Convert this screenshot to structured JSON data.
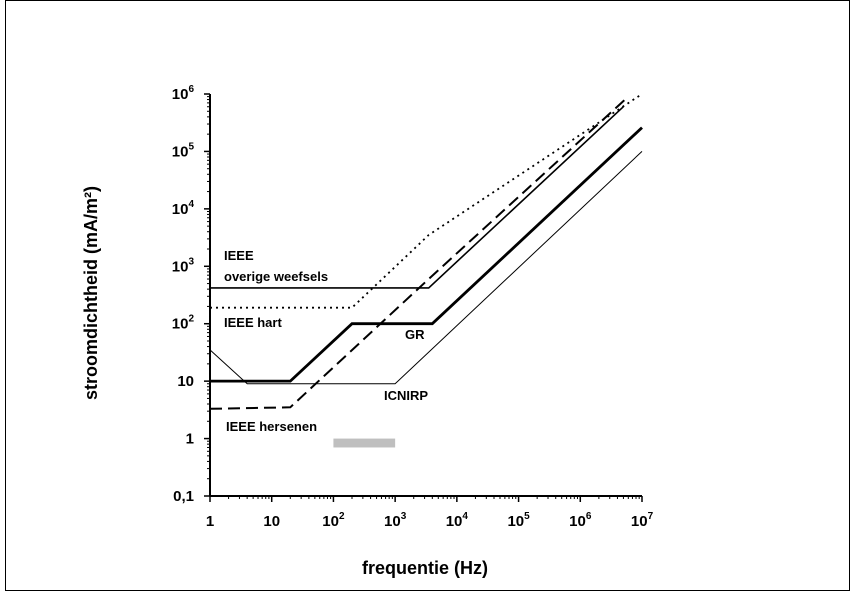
{
  "chart_data": {
    "type": "line",
    "xlabel": "frequentie (Hz)",
    "ylabel": "stroomdichtheid (mA/m²)",
    "xscale": "log",
    "yscale": "log",
    "xlim": [
      1,
      10000000
    ],
    "ylim": [
      0.1,
      1000000
    ],
    "grid": false,
    "x_ticks": [
      {
        "base": "1",
        "exp": ""
      },
      {
        "base": "10",
        "exp": ""
      },
      {
        "base": "10",
        "exp": "2"
      },
      {
        "base": "10",
        "exp": "3"
      },
      {
        "base": "10",
        "exp": "4"
      },
      {
        "base": "10",
        "exp": "5"
      },
      {
        "base": "10",
        "exp": "6"
      },
      {
        "base": "10",
        "exp": "7"
      }
    ],
    "y_ticks": [
      {
        "base": "0,1",
        "exp": ""
      },
      {
        "base": "1",
        "exp": ""
      },
      {
        "base": "10",
        "exp": ""
      },
      {
        "base": "10",
        "exp": "2"
      },
      {
        "base": "10",
        "exp": "3"
      },
      {
        "base": "10",
        "exp": "4"
      },
      {
        "base": "10",
        "exp": "5"
      },
      {
        "base": "10",
        "exp": "6"
      }
    ],
    "series": [
      {
        "name": "IEEE overige weefsels",
        "style": "thin-solid",
        "x": [
          1,
          3500,
          5000000
        ],
        "y": [
          420,
          420,
          600000
        ]
      },
      {
        "name": "IEEE hart",
        "style": "dotted",
        "x": [
          1,
          200,
          3500,
          10000000
        ],
        "y": [
          190,
          190,
          3500,
          1000000
        ]
      },
      {
        "name": "GR",
        "style": "thick-solid",
        "x": [
          1,
          20,
          200,
          4000,
          10000000
        ],
        "y": [
          10,
          10,
          100,
          100,
          260000
        ]
      },
      {
        "name": "ICNIRP",
        "style": "hairline",
        "x": [
          1,
          4,
          1000,
          10000000
        ],
        "y": [
          35,
          9,
          9,
          100000
        ]
      },
      {
        "name": "IEEE hersenen",
        "style": "dashed",
        "x": [
          1,
          20,
          3500,
          6000000
        ],
        "y": [
          3.3,
          3.5,
          600,
          900000
        ]
      }
    ],
    "annotations": [
      {
        "id": "ieee-1",
        "text": "IEEE"
      },
      {
        "id": "overige",
        "text": "overige weefsels"
      },
      {
        "id": "hart",
        "text": "IEEE hart"
      },
      {
        "id": "gr",
        "text": "GR"
      },
      {
        "id": "icnirp",
        "text": "ICNIRP"
      },
      {
        "id": "hersenen",
        "text": "IEEE hersenen"
      }
    ],
    "shaded_band": {
      "x": [
        100,
        1000
      ],
      "y": [
        0.7,
        1.0
      ],
      "color": "#bfbfbf"
    }
  }
}
